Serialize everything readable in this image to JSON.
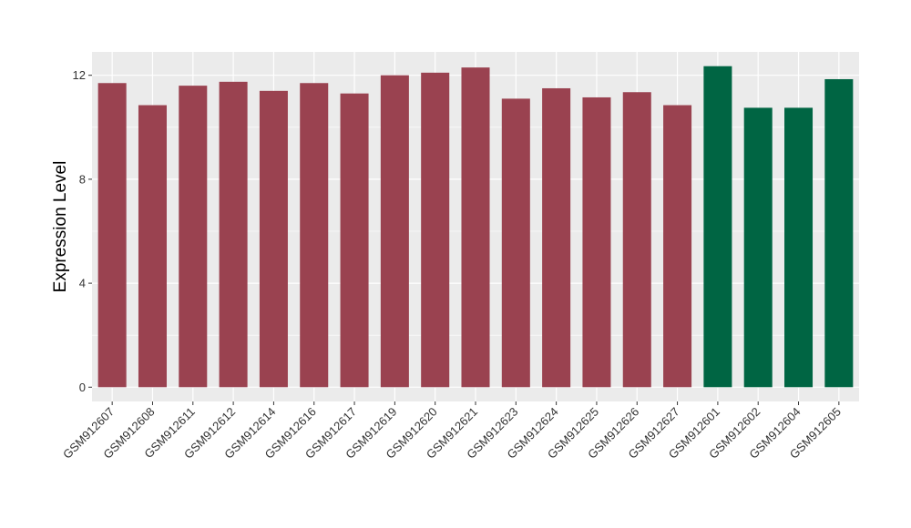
{
  "chart_data": {
    "type": "bar",
    "title": "",
    "xlabel": "",
    "ylabel": "Expression Level",
    "ylim": [
      -0.55,
      12.9
    ],
    "yticks": [
      0,
      4,
      8,
      12
    ],
    "ytick_labels": [
      "0",
      "4",
      "8",
      "12"
    ],
    "grid": true,
    "legend": "none",
    "colors": {
      "panel_background": "#EBEBEB",
      "grid_major": "#FFFFFF",
      "group_a": "#9A4250",
      "group_b": "#006543"
    },
    "categories": [
      "GSM912607",
      "GSM912608",
      "GSM912611",
      "GSM912612",
      "GSM912614",
      "GSM912616",
      "GSM912617",
      "GSM912619",
      "GSM912620",
      "GSM912621",
      "GSM912623",
      "GSM912624",
      "GSM912625",
      "GSM912626",
      "GSM912627",
      "GSM912601",
      "GSM912602",
      "GSM912604",
      "GSM912605"
    ],
    "values": [
      11.7,
      10.85,
      11.6,
      11.75,
      11.4,
      11.7,
      11.3,
      12.0,
      12.1,
      12.3,
      11.1,
      11.5,
      11.15,
      11.35,
      10.85,
      12.35,
      10.75,
      10.75,
      11.85
    ],
    "groups": [
      "a",
      "a",
      "a",
      "a",
      "a",
      "a",
      "a",
      "a",
      "a",
      "a",
      "a",
      "a",
      "a",
      "a",
      "a",
      "b",
      "b",
      "b",
      "b"
    ]
  }
}
